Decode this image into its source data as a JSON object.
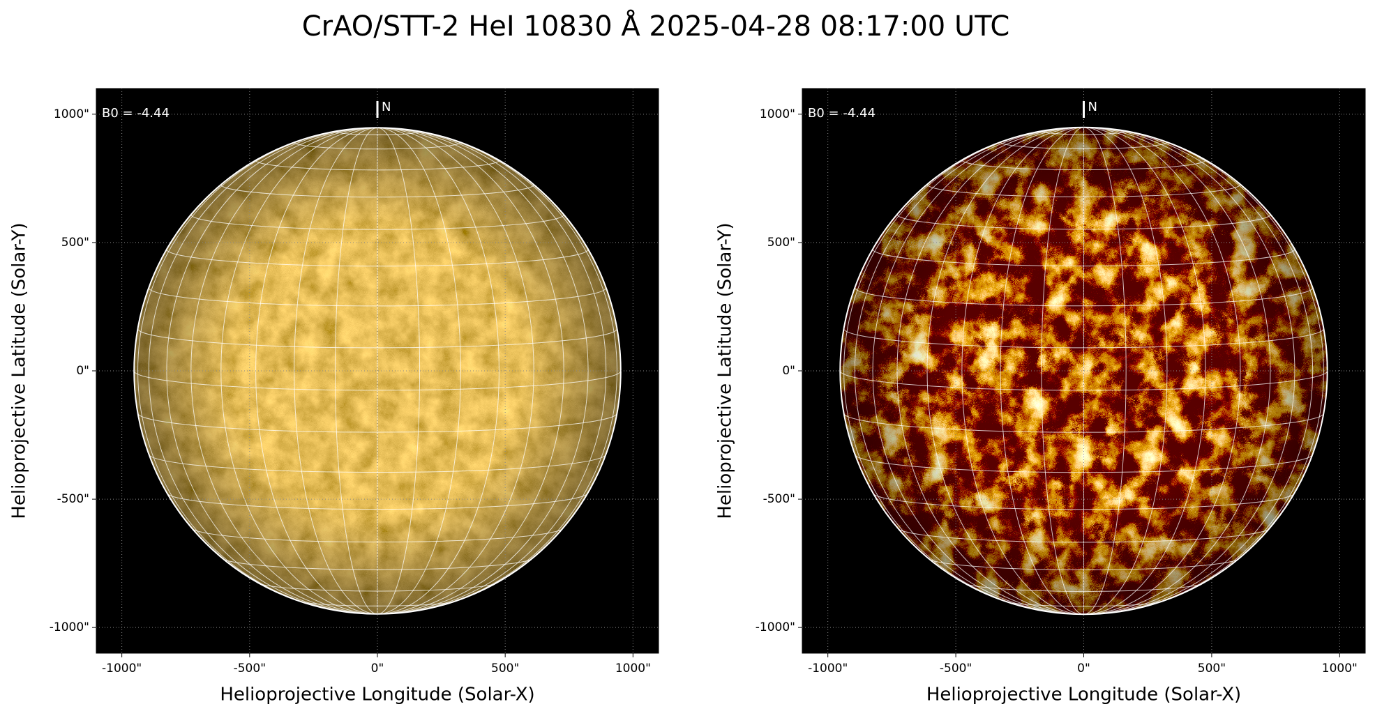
{
  "title": "CrAO/STT-2 HeI 10830 Å 2025-04-28 08:17:00 UTC",
  "chart_data": [
    {
      "type": "image",
      "xlabel": "Helioprojective Longitude (Solar-X)",
      "ylabel": "Helioprojective Latitude (Solar-Y)",
      "b0_label": "B0 = -4.44",
      "north_label": "N",
      "disk_radius": 952,
      "xlim": [
        -1100,
        1100
      ],
      "ylim": [
        -1100,
        1100
      ],
      "xticks": [
        {
          "value": -1000,
          "label": "-1000\""
        },
        {
          "value": -500,
          "label": "-500\""
        },
        {
          "value": 0,
          "label": "0\""
        },
        {
          "value": 500,
          "label": "500\""
        },
        {
          "value": 1000,
          "label": "1000\""
        }
      ],
      "yticks": [
        {
          "value": -1000,
          "label": "-1000\""
        },
        {
          "value": -500,
          "label": "-500\""
        },
        {
          "value": 0,
          "label": "0\""
        },
        {
          "value": 500,
          "label": "500\""
        },
        {
          "value": 1000,
          "label": "1000\""
        }
      ],
      "grid": true
    },
    {
      "type": "image",
      "xlabel": "Helioprojective Longitude (Solar-X)",
      "ylabel": "Helioprojective Latitude (Solar-Y)",
      "b0_label": "B0 = -4.44",
      "north_label": "N",
      "disk_radius": 952,
      "xlim": [
        -1100,
        1100
      ],
      "ylim": [
        -1100,
        1100
      ],
      "xticks": [
        {
          "value": -1000,
          "label": "-1000\""
        },
        {
          "value": -500,
          "label": "-500\""
        },
        {
          "value": 0,
          "label": "0\""
        },
        {
          "value": 500,
          "label": "500\""
        },
        {
          "value": 1000,
          "label": "1000\""
        }
      ],
      "yticks": [
        {
          "value": -1000,
          "label": "-1000\""
        },
        {
          "value": -500,
          "label": "-500\""
        },
        {
          "value": 0,
          "label": "0\""
        },
        {
          "value": 500,
          "label": "500\""
        },
        {
          "value": 1000,
          "label": "1000\""
        }
      ],
      "grid": true
    }
  ]
}
